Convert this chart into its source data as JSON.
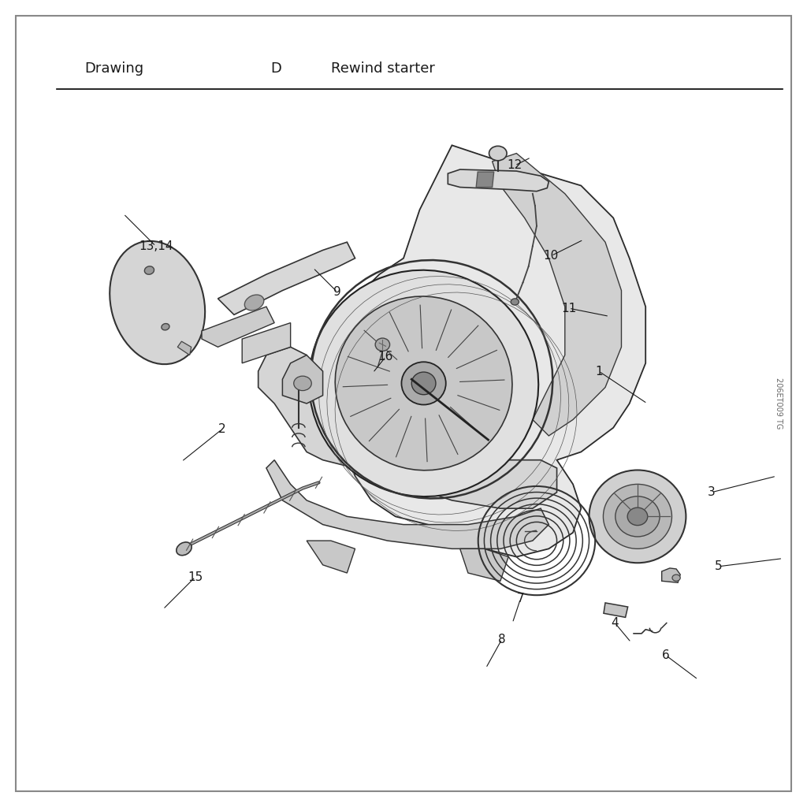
{
  "title_left": "Drawing",
  "title_center": "D",
  "title_right": "Rewind starter",
  "watermark": "206ET009 TG",
  "bg_color": "#ffffff",
  "border_color": "#000000",
  "text_color": "#1a1a1a"
}
